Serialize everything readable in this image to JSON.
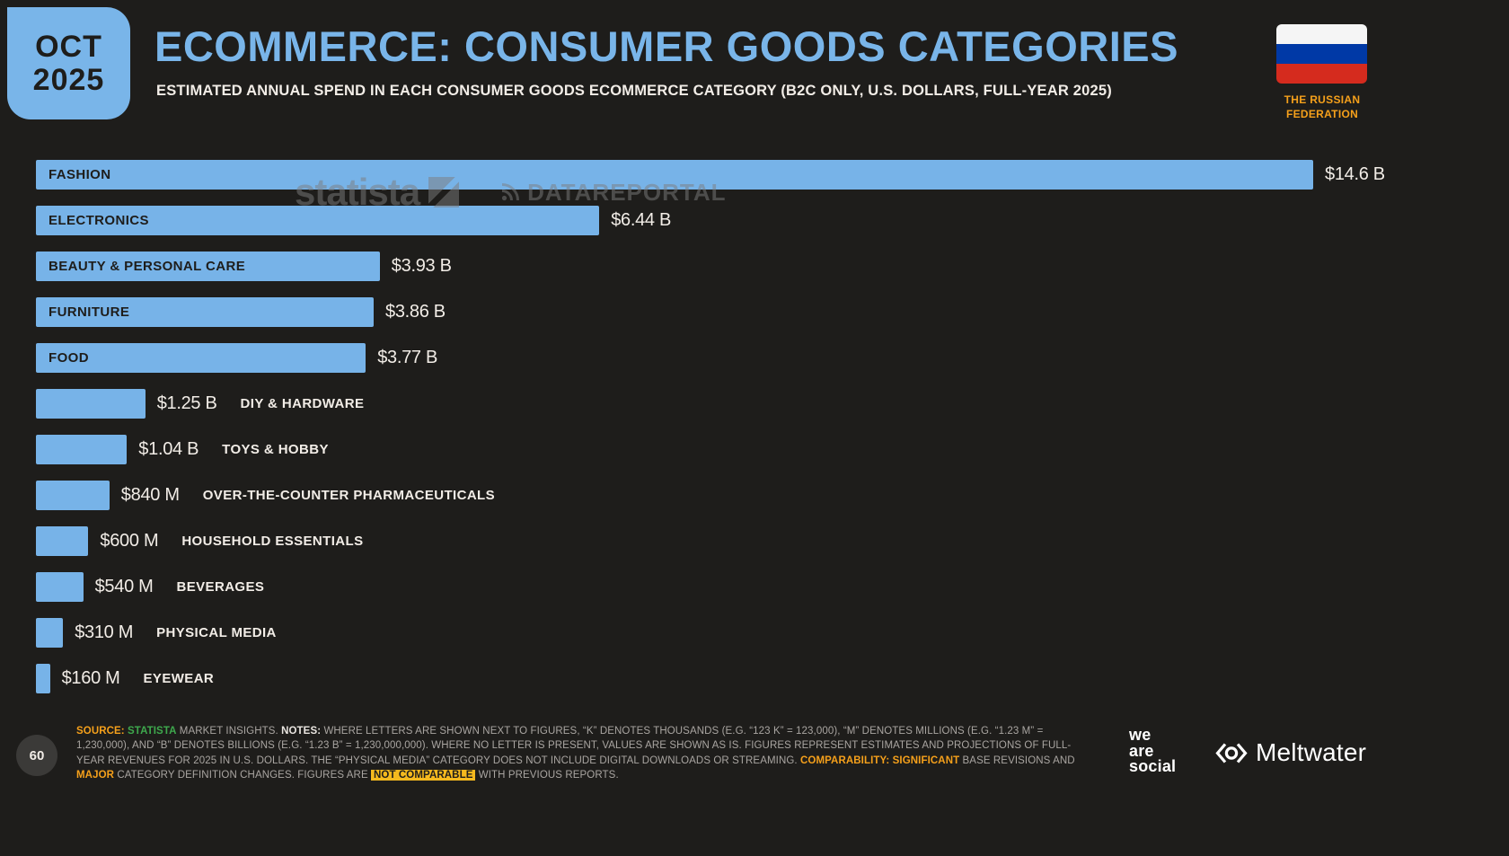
{
  "badge": {
    "line1": "OCT",
    "line2": "2025"
  },
  "header": {
    "title": "ECOMMERCE: CONSUMER GOODS CATEGORIES",
    "subtitle": "ESTIMATED ANNUAL SPEND IN EACH CONSUMER GOODS ECOMMERCE CATEGORY (B2C ONLY, U.S. DOLLARS, FULL-YEAR 2025)",
    "flag_label": "THE RUSSIAN FEDERATION"
  },
  "colors": {
    "accent_blue": "#79b5e9",
    "accent_orange": "#f5a01b",
    "background": "#1e1d1b",
    "flag_stripes": [
      "#f5f5f5",
      "#0039a6",
      "#d52b1e"
    ]
  },
  "watermarks": {
    "statista": "statista",
    "datareportal": "DATAREPORTAL"
  },
  "chart_data": {
    "type": "bar",
    "orientation": "horizontal",
    "title": "ECOMMERCE: CONSUMER GOODS CATEGORIES",
    "unit": "U.S. DOLLARS, FULL-YEAR 2025",
    "xlim": [
      0,
      14.6
    ],
    "grid": false,
    "bar_color": "#77b3e8",
    "categories": [
      "FASHION",
      "ELECTRONICS",
      "BEAUTY & PERSONAL CARE",
      "FURNITURE",
      "FOOD",
      "DIY & HARDWARE",
      "TOYS & HOBBY",
      "OVER-THE-COUNTER PHARMACEUTICALS",
      "HOUSEHOLD ESSENTIALS",
      "BEVERAGES",
      "PHYSICAL MEDIA",
      "EYEWEAR"
    ],
    "values_usd_billions": [
      14.6,
      6.44,
      3.93,
      3.86,
      3.77,
      1.25,
      1.04,
      0.84,
      0.6,
      0.54,
      0.31,
      0.16
    ],
    "value_labels": [
      "$14.6 B",
      "$6.44 B",
      "$3.93 B",
      "$3.86 B",
      "$3.77 B",
      "$1.25 B",
      "$1.04 B",
      "$840 M",
      "$600 M",
      "$540 M",
      "$310 M",
      "$160 M"
    ],
    "label_inside_bar": [
      true,
      true,
      true,
      true,
      true,
      false,
      false,
      false,
      false,
      false,
      false,
      false
    ]
  },
  "footer": {
    "page_number": "60",
    "segments": [
      {
        "text": "SOURCE: ",
        "style": "orange-bold"
      },
      {
        "text": "STATISTA",
        "style": "green"
      },
      {
        "text": " MARKET INSIGHTS. ",
        "style": "plain"
      },
      {
        "text": "NOTES: ",
        "style": "white-bold"
      },
      {
        "text": "WHERE LETTERS ARE SHOWN NEXT TO FIGURES, “K” DENOTES THOUSANDS (E.G. “123 K” = 123,000), “M” DENOTES MILLIONS (E.G. “1.23 M” = 1,230,000), AND “B” DENOTES BILLIONS (E.G. “1.23 B” = 1,230,000,000). WHERE NO LETTER IS PRESENT, VALUES ARE SHOWN AS IS. FIGURES REPRESENT ESTIMATES AND PROJECTIONS OF FULL-YEAR REVENUES FOR 2025 IN U.S. DOLLARS. THE “PHYSICAL MEDIA” CATEGORY DOES NOT INCLUDE DIGITAL DOWNLOADS OR STREAMING. ",
        "style": "plain"
      },
      {
        "text": "COMPARABILITY: ",
        "style": "orange-bold"
      },
      {
        "text": "SIGNIFICANT",
        "style": "orange"
      },
      {
        "text": " BASE REVISIONS AND ",
        "style": "plain"
      },
      {
        "text": "MAJOR",
        "style": "orange"
      },
      {
        "text": " CATEGORY DEFINITION CHANGES. FIGURES ARE ",
        "style": "plain"
      },
      {
        "text": "NOT COMPARABLE",
        "style": "highlight"
      },
      {
        "text": " WITH PREVIOUS REPORTS.",
        "style": "plain"
      }
    ]
  },
  "logos": {
    "we_are_social": {
      "line1": "we",
      "line2": "are",
      "line3": "social"
    },
    "meltwater": "Meltwater"
  }
}
